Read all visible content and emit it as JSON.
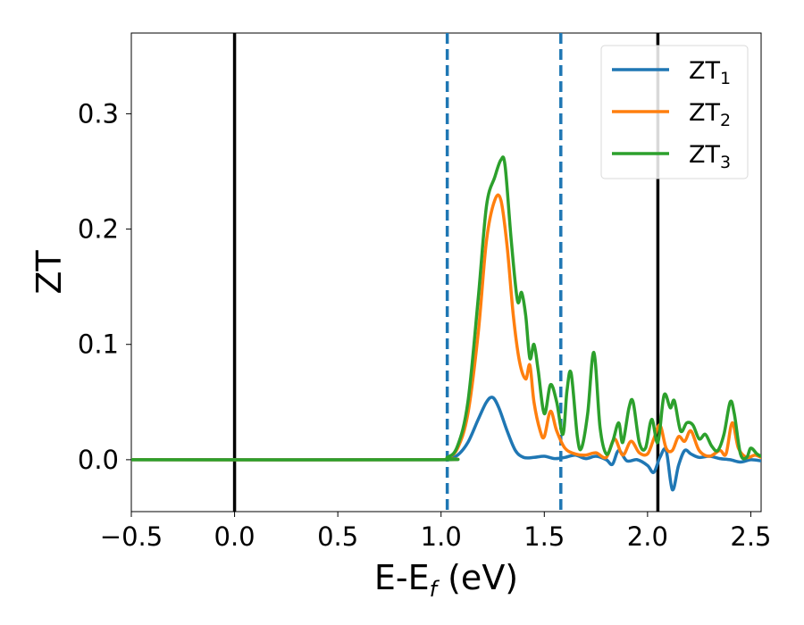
{
  "chart_data": {
    "type": "line",
    "xlabel": {
      "main": "E-E",
      "sub": "f",
      "tail": " (eV)"
    },
    "ylabel": "ZT",
    "xlim": [
      -0.5,
      2.55
    ],
    "ylim": [
      -0.045,
      0.37
    ],
    "x_ticks": [
      -0.5,
      0.0,
      0.5,
      1.0,
      1.5,
      2.0,
      2.5
    ],
    "x_tick_labels": [
      "−0.5",
      "0.0",
      "0.5",
      "1.0",
      "1.5",
      "2.0",
      "2.5"
    ],
    "y_ticks": [
      0.0,
      0.1,
      0.2,
      0.3
    ],
    "y_tick_labels": [
      "0.0",
      "0.1",
      "0.2",
      "0.3"
    ],
    "grid": false,
    "legend_position": "top-right",
    "vlines": [
      {
        "x": 0.0,
        "style": "solid",
        "color": "#000000"
      },
      {
        "x": 2.05,
        "style": "solid",
        "color": "#000000"
      },
      {
        "x": 1.03,
        "style": "dashed",
        "color": "#1f77b4"
      },
      {
        "x": 1.58,
        "style": "dashed",
        "color": "#1f77b4"
      }
    ],
    "series": [
      {
        "name": "ZT",
        "sub": "1",
        "color": "#1f77b4",
        "points": [
          [
            -0.5,
            0
          ],
          [
            0.95,
            0
          ],
          [
            1.03,
            0.001
          ],
          [
            1.08,
            0.004
          ],
          [
            1.13,
            0.015
          ],
          [
            1.18,
            0.035
          ],
          [
            1.22,
            0.05
          ],
          [
            1.25,
            0.054
          ],
          [
            1.28,
            0.045
          ],
          [
            1.32,
            0.025
          ],
          [
            1.36,
            0.008
          ],
          [
            1.4,
            0.002
          ],
          [
            1.45,
            0.002
          ],
          [
            1.5,
            0.003
          ],
          [
            1.55,
            0.001
          ],
          [
            1.6,
            0.002
          ],
          [
            1.65,
            0.004
          ],
          [
            1.7,
            0.001
          ],
          [
            1.75,
            0.003
          ],
          [
            1.8,
            0.0
          ],
          [
            1.83,
            -0.004
          ],
          [
            1.86,
            0.008
          ],
          [
            1.9,
            -0.001
          ],
          [
            1.95,
            0.0
          ],
          [
            2.0,
            -0.005
          ],
          [
            2.03,
            -0.011
          ],
          [
            2.06,
            0.002
          ],
          [
            2.09,
            0.008
          ],
          [
            2.12,
            -0.026
          ],
          [
            2.15,
            -0.005
          ],
          [
            2.18,
            0.008
          ],
          [
            2.21,
            0.005
          ],
          [
            2.25,
            0.002
          ],
          [
            2.3,
            0.003
          ],
          [
            2.35,
            0.001
          ],
          [
            2.4,
            0.0
          ],
          [
            2.45,
            -0.002
          ],
          [
            2.5,
            0.0
          ],
          [
            2.55,
            -0.001
          ]
        ]
      },
      {
        "name": "ZT",
        "sub": "2",
        "color": "#ff7f0e",
        "points": [
          [
            -0.5,
            0
          ],
          [
            0.95,
            0
          ],
          [
            1.03,
            0.002
          ],
          [
            1.08,
            0.01
          ],
          [
            1.13,
            0.04
          ],
          [
            1.18,
            0.11
          ],
          [
            1.22,
            0.19
          ],
          [
            1.26,
            0.225
          ],
          [
            1.29,
            0.225
          ],
          [
            1.32,
            0.185
          ],
          [
            1.35,
            0.125
          ],
          [
            1.38,
            0.085
          ],
          [
            1.41,
            0.07
          ],
          [
            1.43,
            0.082
          ],
          [
            1.45,
            0.05
          ],
          [
            1.48,
            0.025
          ],
          [
            1.5,
            0.02
          ],
          [
            1.53,
            0.042
          ],
          [
            1.56,
            0.025
          ],
          [
            1.6,
            0.01
          ],
          [
            1.65,
            0.005
          ],
          [
            1.7,
            0.004
          ],
          [
            1.75,
            0.006
          ],
          [
            1.8,
            0.002
          ],
          [
            1.84,
            0.018
          ],
          [
            1.88,
            0.004
          ],
          [
            1.92,
            0.016
          ],
          [
            1.96,
            0.006
          ],
          [
            2.0,
            0.005
          ],
          [
            2.03,
            0.018
          ],
          [
            2.06,
            0.03
          ],
          [
            2.09,
            0.01
          ],
          [
            2.12,
            0.008
          ],
          [
            2.15,
            0.02
          ],
          [
            2.18,
            0.016
          ],
          [
            2.21,
            0.025
          ],
          [
            2.25,
            0.008
          ],
          [
            2.3,
            0.003
          ],
          [
            2.35,
            0.008
          ],
          [
            2.38,
            0.005
          ],
          [
            2.41,
            0.032
          ],
          [
            2.44,
            0.01
          ],
          [
            2.48,
            0.002
          ],
          [
            2.52,
            0.004
          ],
          [
            2.55,
            0.002
          ]
        ]
      },
      {
        "name": "ZT",
        "sub": "3",
        "color": "#2ca02c",
        "points": [
          [
            -0.5,
            0
          ],
          [
            0.95,
            0
          ],
          [
            1.03,
            0.002
          ],
          [
            1.08,
            0.012
          ],
          [
            1.13,
            0.05
          ],
          [
            1.18,
            0.14
          ],
          [
            1.22,
            0.22
          ],
          [
            1.26,
            0.245
          ],
          [
            1.29,
            0.26
          ],
          [
            1.31,
            0.255
          ],
          [
            1.34,
            0.19
          ],
          [
            1.37,
            0.138
          ],
          [
            1.39,
            0.145
          ],
          [
            1.41,
            0.125
          ],
          [
            1.43,
            0.088
          ],
          [
            1.45,
            0.1
          ],
          [
            1.47,
            0.078
          ],
          [
            1.5,
            0.04
          ],
          [
            1.53,
            0.065
          ],
          [
            1.56,
            0.05
          ],
          [
            1.59,
            0.022
          ],
          [
            1.61,
            0.06
          ],
          [
            1.63,
            0.075
          ],
          [
            1.66,
            0.02
          ],
          [
            1.68,
            0.01
          ],
          [
            1.71,
            0.04
          ],
          [
            1.74,
            0.093
          ],
          [
            1.77,
            0.028
          ],
          [
            1.8,
            0.005
          ],
          [
            1.83,
            0.015
          ],
          [
            1.86,
            0.032
          ],
          [
            1.88,
            0.015
          ],
          [
            1.91,
            0.045
          ],
          [
            1.93,
            0.05
          ],
          [
            1.96,
            0.015
          ],
          [
            1.99,
            0.01
          ],
          [
            2.02,
            0.035
          ],
          [
            2.05,
            0.015
          ],
          [
            2.08,
            0.056
          ],
          [
            2.11,
            0.045
          ],
          [
            2.13,
            0.051
          ],
          [
            2.16,
            0.025
          ],
          [
            2.19,
            0.032
          ],
          [
            2.22,
            0.03
          ],
          [
            2.25,
            0.018
          ],
          [
            2.28,
            0.022
          ],
          [
            2.31,
            0.012
          ],
          [
            2.34,
            0.008
          ],
          [
            2.37,
            0.022
          ],
          [
            2.4,
            0.05
          ],
          [
            2.42,
            0.04
          ],
          [
            2.45,
            0.005
          ],
          [
            2.48,
            0.002
          ],
          [
            2.5,
            0.01
          ],
          [
            2.53,
            0.005
          ],
          [
            2.55,
            0.003
          ]
        ]
      }
    ]
  }
}
